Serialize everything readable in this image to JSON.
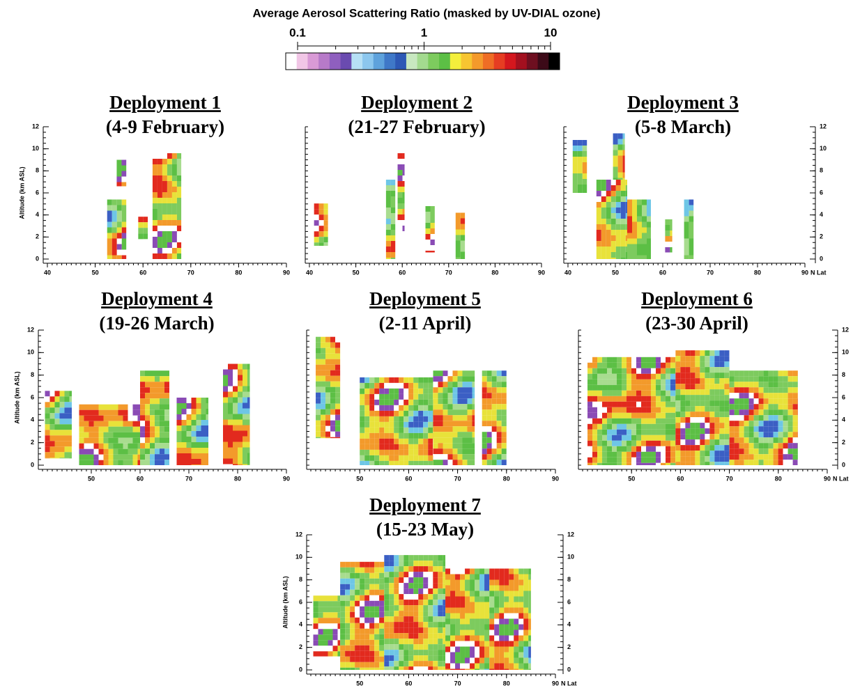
{
  "chart_data": [
    {
      "type": "colorbar",
      "title": "Average Aerosol Scattering Ratio (masked by UV-DIAL ozone)",
      "log_scale": true,
      "xlim": [
        0.1,
        10
      ],
      "xticks": [
        0.1,
        1,
        10
      ],
      "colors": [
        "#ffffff",
        "#f1c6e6",
        "#d99ad6",
        "#b77ac9",
        "#8f5fbf",
        "#6a4bb0",
        "#b6e0f5",
        "#8cc7ee",
        "#5ea2dc",
        "#3f78c8",
        "#2d58b5",
        "#c8e8c0",
        "#a3da8f",
        "#7dcb5e",
        "#5cbf45",
        "#f4ef3c",
        "#f7c531",
        "#f49a2b",
        "#ef6d25",
        "#e63d22",
        "#d4171e",
        "#a3101f",
        "#6e0f20",
        "#3c0a18",
        "#000000"
      ]
    },
    {
      "type": "curtain",
      "title": "Deployment 1",
      "subtitle": "(4-9 February)",
      "ylabel": "Altitude (km ASL)",
      "xlim": [
        40,
        90
      ],
      "xticks": [
        40,
        50,
        60,
        70,
        80,
        90
      ],
      "ylim": [
        0,
        12
      ],
      "yticks": [
        0,
        2,
        4,
        6,
        8,
        10,
        12
      ]
    },
    {
      "type": "curtain",
      "title": "Deployment 2",
      "subtitle": "(21-27 February)",
      "xlim": [
        40,
        90
      ],
      "xticks": [
        40,
        50,
        60,
        70,
        80,
        90
      ],
      "ylim": [
        0,
        12
      ]
    },
    {
      "type": "curtain",
      "title": "Deployment 3",
      "subtitle": "(5-8 March)",
      "xlabel": "N Lat",
      "xlim": [
        40,
        90
      ],
      "xticks": [
        40,
        50,
        60,
        70,
        80,
        90
      ],
      "y2lim": [
        0,
        12
      ],
      "y2ticks": [
        0,
        2,
        4,
        6,
        8,
        10,
        12
      ]
    },
    {
      "type": "curtain",
      "title": "Deployment 4",
      "subtitle": "(19-26 March)",
      "ylabel": "Altitude (km ASL)",
      "xlim": [
        40,
        90
      ],
      "xticks": [
        50,
        60,
        70,
        80,
        90
      ],
      "ylim": [
        0,
        12
      ],
      "yticks": [
        0,
        2,
        4,
        6,
        8,
        10,
        12
      ]
    },
    {
      "type": "curtain",
      "title": "Deployment 5",
      "subtitle": "(2-11 April)",
      "xlim": [
        40,
        90
      ],
      "xticks": [
        50,
        60,
        70,
        80,
        90
      ],
      "ylim": [
        0,
        12
      ]
    },
    {
      "type": "curtain",
      "title": "Deployment 6",
      "subtitle": "(23-30 April)",
      "xlabel": "N Lat",
      "xlim": [
        40,
        90
      ],
      "xticks": [
        50,
        60,
        70,
        80,
        90
      ],
      "y2lim": [
        0,
        12
      ],
      "y2ticks": [
        0,
        2,
        4,
        6,
        8,
        10,
        12
      ]
    },
    {
      "type": "curtain",
      "title": "Deployment 7",
      "subtitle": "(15-23 May)",
      "ylabel": "Altitude (km ASL)",
      "xlabel": "N Lat",
      "xlim": [
        40,
        90
      ],
      "xticks": [
        50,
        60,
        70,
        80,
        90
      ],
      "ylim": [
        0,
        12
      ],
      "yticks": [
        0,
        2,
        4,
        6,
        8,
        10,
        12
      ],
      "y2lim": [
        0,
        12
      ],
      "y2ticks": [
        0,
        2,
        4,
        6,
        8,
        10,
        12
      ]
    }
  ]
}
